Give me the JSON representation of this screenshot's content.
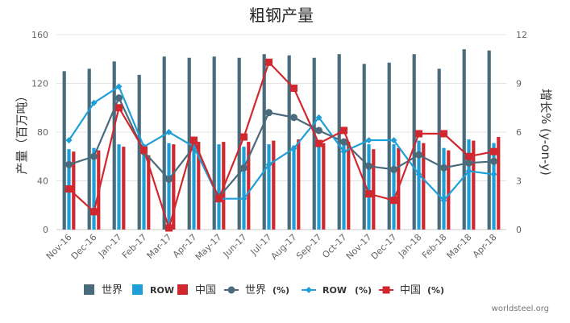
{
  "chart_data": {
    "type": "bar",
    "title": "粗钢产量",
    "ylabel": "产量（百万吨）",
    "y2label": "增长% (y-on-y)",
    "categories": [
      "Nov-16",
      "Dec-16",
      "Jan-17",
      "Feb-17",
      "Mar-17",
      "Apr-17",
      "May-17",
      "Jun-17",
      "Jul-17",
      "Aug-17",
      "Sep-17",
      "Oct-17",
      "Nov-17",
      "Dec-17",
      "Jan-18",
      "Feb-18",
      "Mar-18",
      "Apr-18"
    ],
    "ylim": [
      0,
      160
    ],
    "yticks": [
      0,
      40,
      80,
      120,
      160
    ],
    "y2lim": [
      0,
      12
    ],
    "y2ticks": [
      0,
      3,
      6,
      9,
      12
    ],
    "grid": true,
    "legend_position": "bottom",
    "bar_series": [
      {
        "name": "世界",
        "color": "#4a6b7c",
        "values": [
          130,
          132,
          138,
          127,
          142,
          141,
          142,
          141,
          144,
          143,
          141,
          144,
          136,
          137,
          144,
          132,
          148,
          147
        ]
      },
      {
        "name": "ROW",
        "color": "#1e9fd8",
        "values": [
          66,
          67,
          70,
          62,
          71,
          71,
          70,
          68,
          70,
          69,
          70,
          71,
          70,
          70,
          73,
          67,
          74,
          71
        ]
      },
      {
        "name": "中国",
        "color": "#d0282e",
        "values": [
          64,
          65,
          68,
          61,
          70,
          72,
          72,
          72,
          73,
          74,
          71,
          72,
          66,
          67,
          71,
          65,
          73,
          76
        ]
      }
    ],
    "line_series": [
      {
        "name": "世界",
        "suffix": "(%)",
        "color": "#4a6b7c",
        "marker": "circle",
        "values": [
          4.0,
          4.5,
          8.1,
          4.8,
          3.1,
          5.1,
          2.0,
          3.8,
          7.2,
          6.9,
          6.1,
          5.4,
          3.9,
          3.7,
          4.6,
          3.8,
          4.1,
          4.2
        ]
      },
      {
        "name": "ROW",
        "suffix": "(%)",
        "color": "#1e9fd8",
        "marker": "diamond",
        "values": [
          5.5,
          7.8,
          8.8,
          5.1,
          6.0,
          5.1,
          1.9,
          1.9,
          4.0,
          5.0,
          6.9,
          4.8,
          5.5,
          5.5,
          3.4,
          1.8,
          3.6,
          3.4
        ]
      },
      {
        "name": "中国",
        "suffix": "(%)",
        "color": "#d0282e",
        "marker": "square",
        "values": [
          2.5,
          1.1,
          7.5,
          4.9,
          0.1,
          5.5,
          1.9,
          5.7,
          10.3,
          8.7,
          5.3,
          6.1,
          2.2,
          1.8,
          5.9,
          5.9,
          4.5,
          4.8
        ]
      }
    ],
    "source": "worldsteel.org"
  }
}
